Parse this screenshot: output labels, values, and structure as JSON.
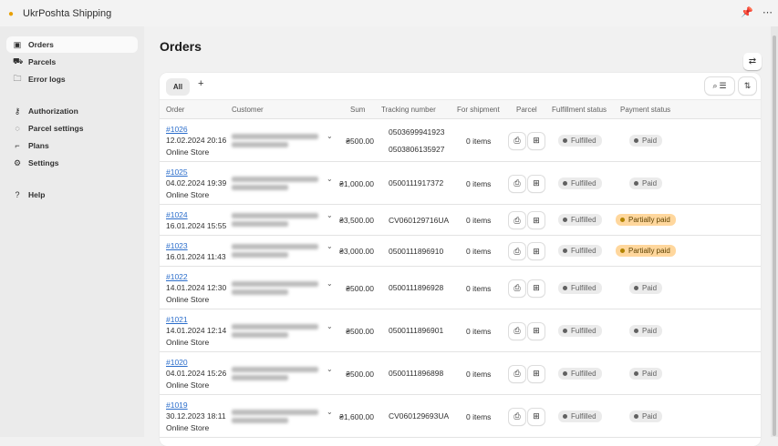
{
  "app": {
    "title": "UkrPoshta Shipping",
    "pin_icon": "pin-icon",
    "more_icon": "more-icon"
  },
  "sidebar": {
    "items": [
      {
        "label": "Orders",
        "icon": "orders-icon",
        "active": true
      },
      {
        "label": "Parcels",
        "icon": "truck-icon"
      },
      {
        "label": "Error logs",
        "icon": "folder-icon"
      },
      {
        "label": "Authorization",
        "icon": "key-icon"
      },
      {
        "label": "Parcel settings",
        "icon": "parcel-settings-icon"
      },
      {
        "label": "Plans",
        "icon": "plans-icon"
      },
      {
        "label": "Settings",
        "icon": "gear-icon"
      },
      {
        "label": "Help",
        "icon": "help-icon"
      }
    ]
  },
  "page": {
    "title": "Orders"
  },
  "tabs": {
    "all": "All",
    "add": "+"
  },
  "columns": [
    "Order",
    "Customer",
    "Sum",
    "Tracking number",
    "For shipment",
    "Parcel",
    "Fulfillment status",
    "Payment status"
  ],
  "rows": [
    {
      "order": "#1026",
      "date": "12.02.2024 20:16",
      "source": "Online Store",
      "sum": "₴500.00",
      "tracking": [
        "0503699941923",
        "0503806135927"
      ],
      "ship": "0 items",
      "fulfillment": "Fulfilled",
      "payment": "Paid"
    },
    {
      "order": "#1025",
      "date": "04.02.2024 19:39",
      "source": "Online Store",
      "sum": "₴1,000.00",
      "tracking": [
        "0500111917372"
      ],
      "ship": "0 items",
      "fulfillment": "Fulfilled",
      "payment": "Paid"
    },
    {
      "order": "#1024",
      "date": "16.01.2024 15:55",
      "source": "",
      "sum": "₴3,500.00",
      "tracking": [
        "CV060129716UA"
      ],
      "ship": "0 items",
      "fulfillment": "Fulfilled",
      "payment": "Partially paid"
    },
    {
      "order": "#1023",
      "date": "16.01.2024 11:43",
      "source": "",
      "sum": "₴3,000.00",
      "tracking": [
        "0500111896910"
      ],
      "ship": "0 items",
      "fulfillment": "Fulfilled",
      "payment": "Partially paid"
    },
    {
      "order": "#1022",
      "date": "14.01.2024 12:30",
      "source": "Online Store",
      "sum": "₴500.00",
      "tracking": [
        "0500111896928"
      ],
      "ship": "0 items",
      "fulfillment": "Fulfilled",
      "payment": "Paid"
    },
    {
      "order": "#1021",
      "date": "14.01.2024 12:14",
      "source": "Online Store",
      "sum": "₴500.00",
      "tracking": [
        "0500111896901"
      ],
      "ship": "0 items",
      "fulfillment": "Fulfilled",
      "payment": "Paid"
    },
    {
      "order": "#1020",
      "date": "04.01.2024 15:26",
      "source": "Online Store",
      "sum": "₴500.00",
      "tracking": [
        "0500111896898"
      ],
      "ship": "0 items",
      "fulfillment": "Fulfilled",
      "payment": "Paid"
    },
    {
      "order": "#1019",
      "date": "30.12.2023 18:11",
      "source": "Online Store",
      "sum": "₴1,600.00",
      "tracking": [
        "CV060129693UA"
      ],
      "ship": "0 items",
      "fulfillment": "Fulfilled",
      "payment": "Paid"
    }
  ],
  "colors": {
    "link": "#2c6ecb",
    "warning_badge": "#ffd79d",
    "neutral_badge": "#ebebeb"
  }
}
